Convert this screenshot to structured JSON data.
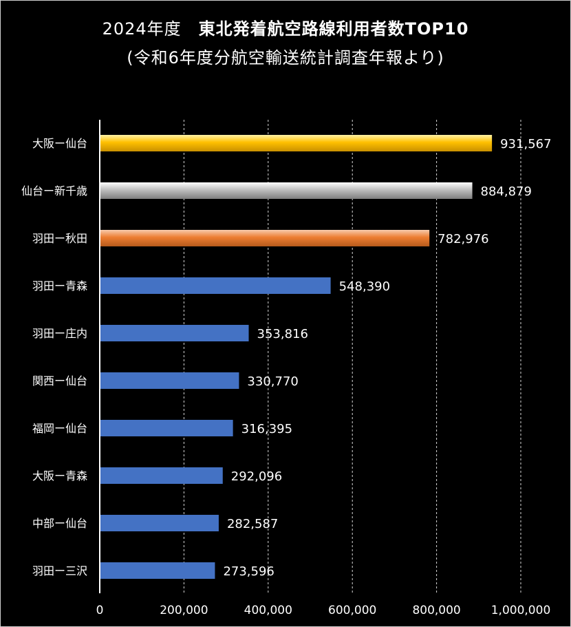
{
  "chart_data": {
    "type": "bar",
    "orientation": "horizontal",
    "title_year": "2024年度",
    "title_main": "東北発着航空路線利用者数TOP10",
    "subtitle": "(令和6年度分航空輸送統計調査年報より)",
    "categories": [
      "大阪ー仙台",
      "仙台ー新千歳",
      "羽田ー秋田",
      "羽田ー青森",
      "羽田ー庄内",
      "関西ー仙台",
      "福岡ー仙台",
      "大阪ー青森",
      "中部ー仙台",
      "羽田ー三沢"
    ],
    "values": [
      931567,
      884879,
      782976,
      548390,
      353816,
      330770,
      316395,
      292096,
      282587,
      273596
    ],
    "data_labels": [
      "931,567",
      "884,879",
      "782,976",
      "548,390",
      "353,816",
      "330,770",
      "316,395",
      "292,096",
      "282,587",
      "273,596"
    ],
    "bar_styles": [
      "gold",
      "silver",
      "bronze",
      "blue",
      "blue",
      "blue",
      "blue",
      "blue",
      "blue",
      "blue"
    ],
    "xlim": [
      0,
      1000000
    ],
    "xticks": [
      0,
      200000,
      400000,
      600000,
      800000,
      1000000
    ],
    "xtick_labels": [
      "0",
      "200,000",
      "400,000",
      "600,000",
      "800,000",
      "1,000,000"
    ],
    "grid": "vertical dashed",
    "xlabel": "",
    "ylabel": "",
    "colors": {
      "background": "#000000",
      "text": "#ffffff",
      "grid": "#d9d9d9",
      "blue": "#4472c4",
      "gold_light": "#fff3a6",
      "gold_mid": "#ffc000",
      "gold_dark": "#c99000",
      "silver_light": "#ffffff",
      "silver_mid": "#bfbfbf",
      "silver_dark": "#7f7f7f",
      "bronze_light": "#f8cbad",
      "bronze_mid": "#ed7d31",
      "bronze_dark": "#b55a1c"
    }
  }
}
